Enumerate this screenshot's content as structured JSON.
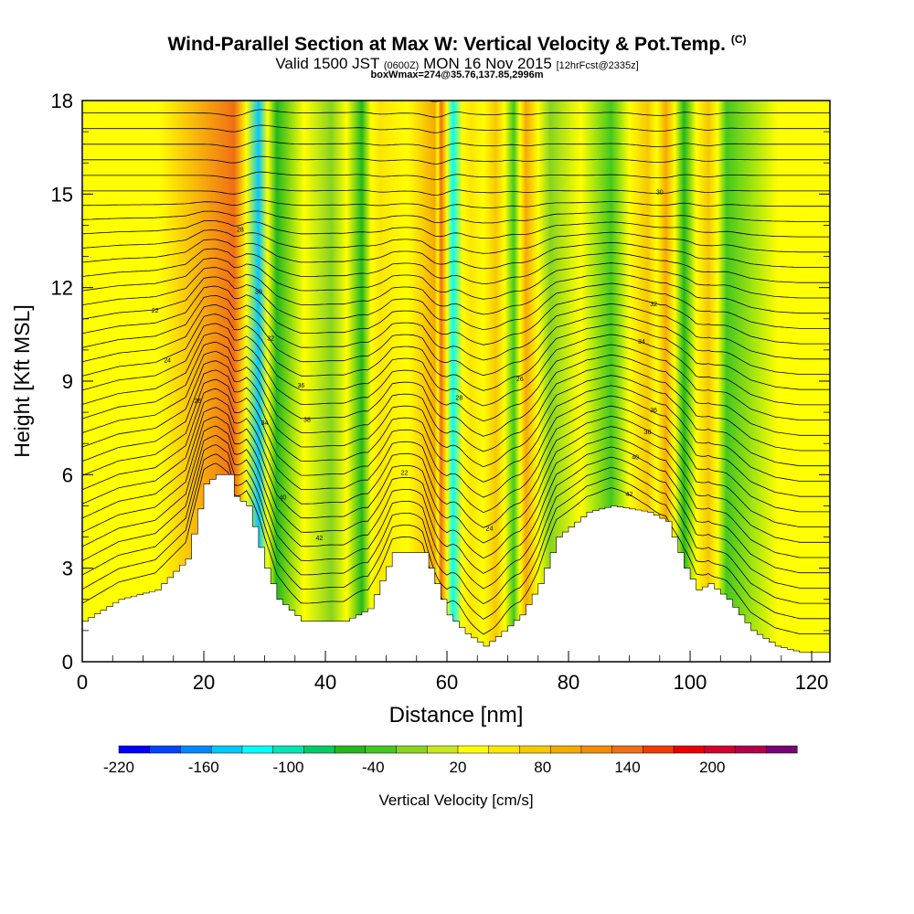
{
  "titles": {
    "main": "Wind-Parallel Section at Max W: Vertical Velocity & Pot.Temp.",
    "copyright": "(C)",
    "valid_a": "Valid 1500 JST",
    "valid_b": "(0600Z)",
    "valid_c": "MON 16 Nov 2015",
    "valid_d": "[12hrFcst@2335z]",
    "box": "boxWmax=274@35.76,137.85,2996m"
  },
  "chart_data": {
    "type": "heatmap",
    "xlabel": "Distance [nm]",
    "ylabel": "Height [Kft MSL]",
    "xlim": [
      0,
      123
    ],
    "ylim": [
      0,
      18
    ],
    "x_ticks": [
      "0",
      "20",
      "40",
      "60",
      "80",
      "100",
      "120"
    ],
    "y_ticks": [
      "0",
      "3",
      "6",
      "9",
      "12",
      "15",
      "18"
    ],
    "colorbar": {
      "label": "Vertical Velocity [cm/s]",
      "tick_labels": [
        "-220",
        "-160",
        "-100",
        "-40",
        "20",
        "80",
        "140",
        "200"
      ],
      "tick_values": [
        -220,
        -160,
        -100,
        -40,
        20,
        80,
        140,
        200
      ],
      "range": [
        -220,
        260
      ],
      "colors": [
        "#0000ff",
        "#0044ff",
        "#0088ff",
        "#00c8ff",
        "#00ffff",
        "#00e6b4",
        "#00cc66",
        "#22b81e",
        "#44c81e",
        "#88d41e",
        "#c8e61e",
        "#ffff00",
        "#fae600",
        "#f5c800",
        "#f5aa00",
        "#f58c00",
        "#f06e14",
        "#f03c00",
        "#eb0000",
        "#d2002d",
        "#b4004b",
        "#780078"
      ]
    },
    "vertical_velocity_bands": [
      {
        "x": 25,
        "value": 150
      },
      {
        "x": 29,
        "value": -150
      },
      {
        "x": 32,
        "value": -50
      },
      {
        "x": 41,
        "value": -20
      },
      {
        "x": 46,
        "value": -50
      },
      {
        "x": 49,
        "value": 60
      },
      {
        "x": 58,
        "value": 100
      },
      {
        "x": 59,
        "value": 140
      },
      {
        "x": 61,
        "value": -130
      },
      {
        "x": 64,
        "value": 60
      },
      {
        "x": 68,
        "value": 80
      },
      {
        "x": 71,
        "value": -40
      },
      {
        "x": 73,
        "value": 90
      },
      {
        "x": 77,
        "value": -20
      },
      {
        "x": 87,
        "value": -30
      },
      {
        "x": 93,
        "value": 70
      },
      {
        "x": 96,
        "value": 100
      },
      {
        "x": 99,
        "value": -60
      },
      {
        "x": 103,
        "value": 80
      },
      {
        "x": 106,
        "value": -30
      }
    ],
    "terrain": [
      {
        "x": 0,
        "h": 1.3
      },
      {
        "x": 6,
        "h": 2.0
      },
      {
        "x": 12,
        "h": 2.3
      },
      {
        "x": 17,
        "h": 3.3
      },
      {
        "x": 20,
        "h": 5.7
      },
      {
        "x": 22,
        "h": 6.0
      },
      {
        "x": 24,
        "h": 6.0
      },
      {
        "x": 25,
        "h": 5.3
      },
      {
        "x": 27,
        "h": 5.0
      },
      {
        "x": 30,
        "h": 3.0
      },
      {
        "x": 32,
        "h": 2.0
      },
      {
        "x": 36,
        "h": 1.3
      },
      {
        "x": 43,
        "h": 1.3
      },
      {
        "x": 47,
        "h": 1.7
      },
      {
        "x": 51,
        "h": 3.5
      },
      {
        "x": 56,
        "h": 3.5
      },
      {
        "x": 60,
        "h": 1.5
      },
      {
        "x": 63,
        "h": 0.9
      },
      {
        "x": 66,
        "h": 0.5
      },
      {
        "x": 68,
        "h": 0.8
      },
      {
        "x": 72,
        "h": 1.5
      },
      {
        "x": 75,
        "h": 2.5
      },
      {
        "x": 78,
        "h": 4.0
      },
      {
        "x": 83,
        "h": 4.8
      },
      {
        "x": 87,
        "h": 5.0
      },
      {
        "x": 93,
        "h": 4.8
      },
      {
        "x": 96,
        "h": 4.5
      },
      {
        "x": 99,
        "h": 3.0
      },
      {
        "x": 101,
        "h": 2.3
      },
      {
        "x": 103,
        "h": 2.5
      },
      {
        "x": 106,
        "h": 2.0
      },
      {
        "x": 110,
        "h": 1.0
      },
      {
        "x": 114,
        "h": 0.5
      },
      {
        "x": 118,
        "h": 0.3
      },
      {
        "x": 123,
        "h": 0.3
      }
    ],
    "isentropes": {
      "series": "Pot.Temp.",
      "contour_labels": [
        "22",
        "24",
        "26",
        "28",
        "30",
        "32",
        "34",
        "36",
        "38",
        "40",
        "42"
      ]
    }
  }
}
